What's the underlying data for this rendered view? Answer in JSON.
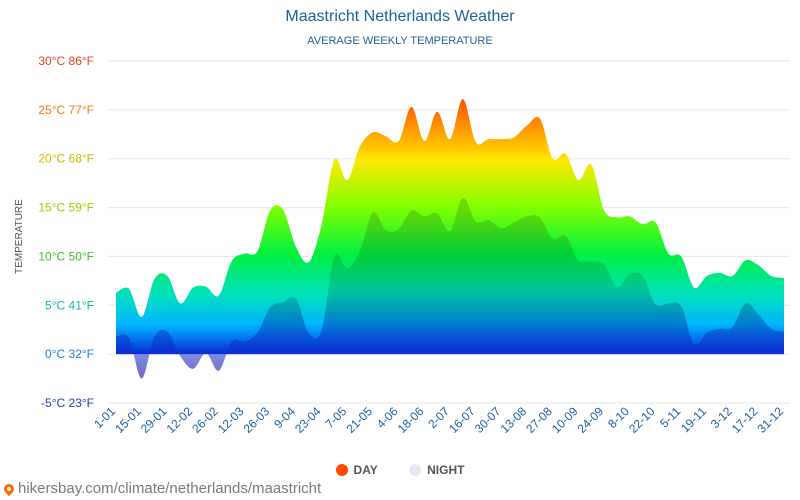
{
  "chart_data": {
    "type": "area",
    "title": "Maastricht Netherlands Weather",
    "subtitle": "AVERAGE WEEKLY TEMPERATURE",
    "ylabel": "TEMPERATURE",
    "ylim": [
      -5,
      30
    ],
    "yticks": [
      {
        "value": 30,
        "label": "30°C 86°F",
        "color": "#e8431b"
      },
      {
        "value": 25,
        "label": "25°C 77°F",
        "color": "#f07a10"
      },
      {
        "value": 20,
        "label": "20°C 68°F",
        "color": "#d4b800"
      },
      {
        "value": 15,
        "label": "15°C 59°F",
        "color": "#9ccc00"
      },
      {
        "value": 10,
        "label": "10°C 50°F",
        "color": "#3fbf2a"
      },
      {
        "value": 5,
        "label": "5°C 41°F",
        "color": "#12b2a6"
      },
      {
        "value": 0,
        "label": "0°C 32°F",
        "color": "#1d7ed8"
      },
      {
        "value": -5,
        "label": "-5°C 23°F",
        "color": "#1e3fae"
      }
    ],
    "x_tick_labels": [
      "1-01",
      "15-01",
      "29-01",
      "12-02",
      "26-02",
      "12-03",
      "26-03",
      "9-04",
      "23-04",
      "7-05",
      "21-05",
      "4-06",
      "18-06",
      "2-07",
      "16-07",
      "30-07",
      "13-08",
      "27-08",
      "10-09",
      "24-09",
      "8-10",
      "22-10",
      "5-11",
      "19-11",
      "3-12",
      "17-12",
      "31-12"
    ],
    "x_tick_index": [
      0,
      2,
      4,
      6,
      8,
      10,
      12,
      14,
      16,
      18,
      20,
      22,
      24,
      26,
      28,
      30,
      32,
      34,
      36,
      38,
      40,
      42,
      44,
      46,
      48,
      50,
      52
    ],
    "series": [
      {
        "name": "DAY",
        "color": "#ff4d00",
        "values": [
          6.3,
          6.7,
          3.8,
          7.7,
          8,
          5.2,
          6.8,
          6.9,
          6,
          9.5,
          10.3,
          10.5,
          14.7,
          14.8,
          11,
          9.4,
          13.2,
          19.9,
          17.8,
          21.3,
          22.7,
          22.3,
          21.8,
          25.3,
          21.8,
          24.8,
          22,
          26.1,
          21.7,
          22,
          22,
          22.2,
          23.4,
          24.1,
          20,
          20.5,
          17.8,
          19.4,
          14.7,
          14,
          14.1,
          13.3,
          13.5,
          10.3,
          10,
          6.8,
          8,
          8.3,
          8,
          9.6,
          9.1,
          8,
          7.8
        ]
      },
      {
        "name": "NIGHT",
        "color": "#e1e8ef",
        "values": [
          1.8,
          1.7,
          -2.5,
          1.8,
          2.3,
          -0.2,
          -1.5,
          0.1,
          -1.7,
          1.3,
          1.3,
          2.2,
          4.8,
          5.3,
          5.7,
          2.2,
          2.4,
          10,
          8.8,
          10.6,
          14.5,
          12.7,
          12.8,
          14.7,
          14.1,
          14.4,
          12.6,
          16,
          13.6,
          13.7,
          12.9,
          13.5,
          14.1,
          14,
          11.8,
          12.1,
          9.6,
          9.5,
          9.2,
          6.9,
          8.2,
          8,
          5.1,
          5.2,
          4.9,
          1,
          2.2,
          2.6,
          2.8,
          5.2,
          4.1,
          2.6,
          2.3
        ]
      }
    ],
    "legend_position": "bottom-center",
    "grid": true
  },
  "legend": {
    "day_label": "DAY",
    "night_label": "NIGHT"
  },
  "source": {
    "text": "hikersbay.com/climate/netherlands/maastricht"
  }
}
